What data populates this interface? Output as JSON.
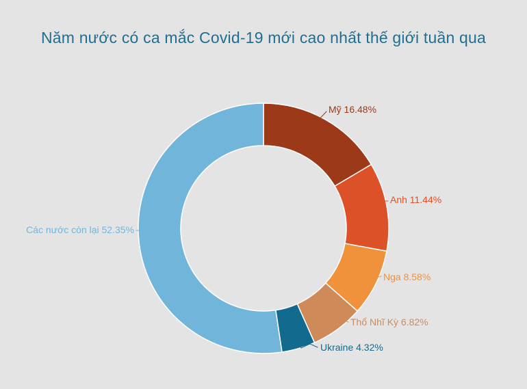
{
  "chart_data": {
    "type": "pie",
    "variant": "donut",
    "title": "Năm nước có ca mắc Covid-19 mới cao nhất thế giới tuần qua",
    "unit": "%",
    "direction": "clockwise",
    "start_angle_deg": 0,
    "legend_position": "outside-callout-labels",
    "segments": [
      {
        "label": "Mỹ",
        "value": 16.48,
        "color": "#9c3918"
      },
      {
        "label": "Anh",
        "value": 11.44,
        "color": "#dc5127"
      },
      {
        "label": "Nga",
        "value": 8.58,
        "color": "#f0913c"
      },
      {
        "label": "Thổ Nhĩ Kỳ",
        "value": 6.82,
        "color": "#ce8a59"
      },
      {
        "label": "Ukraine",
        "value": 4.32,
        "color": "#136a8f"
      },
      {
        "label": "Các nước còn lại",
        "value": 52.35,
        "color": "#72b5db"
      }
    ]
  },
  "style": {
    "background": "#e4e4e4",
    "title_color": "#1e6f91"
  }
}
